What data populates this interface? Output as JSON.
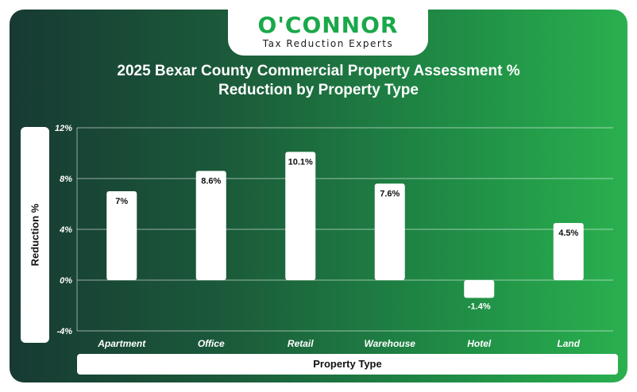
{
  "brand": {
    "name": "O'CONNOR",
    "tagline": "Tax Reduction Experts"
  },
  "chart_data": {
    "type": "bar",
    "title": "2025 Bexar County Commercial Property Assessment % Reduction by Property Type",
    "xlabel": "Property Type",
    "ylabel": "Reduction %",
    "categories": [
      "Apartment",
      "Office",
      "Retail",
      "Warehouse",
      "Hotel",
      "Land"
    ],
    "values": [
      7,
      8.6,
      10.1,
      7.6,
      -1.4,
      4.5
    ],
    "data_labels": [
      "7%",
      "8.6%",
      "10.1%",
      "7.6%",
      "-1.4%",
      "4.5%"
    ],
    "ylim": [
      -4,
      12
    ],
    "yticks": [
      12,
      8,
      4,
      0,
      -4
    ],
    "ytick_labels": [
      "12%",
      "8%",
      "4%",
      "0%",
      "-4%"
    ],
    "grid": true,
    "bar_color": "#ffffff",
    "label_color_inside": "#111111",
    "label_color_outside": "#ffffff"
  }
}
